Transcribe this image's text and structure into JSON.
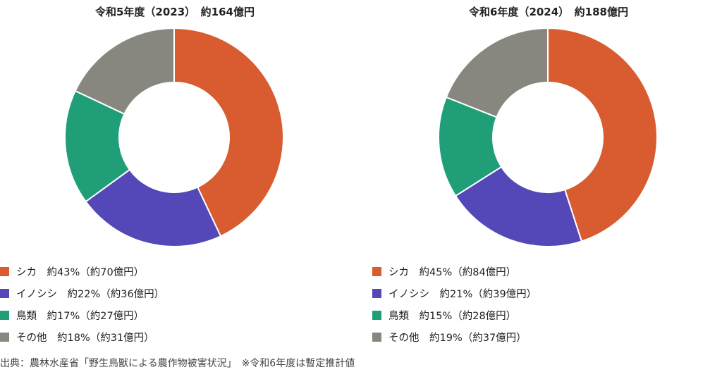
{
  "colors": {
    "deer": "#d95c30",
    "boar": "#5448b8",
    "birds": "#1f9e78",
    "other": "#878780"
  },
  "chart_data": [
    {
      "type": "pie",
      "donut": true,
      "title": "令和5年度（2023）　約164億円",
      "slices": [
        {
          "key": "deer",
          "label": "シカ",
          "percent": 43,
          "legend": "シカ　約43%（約70億円）"
        },
        {
          "key": "boar",
          "label": "イノシシ",
          "percent": 22,
          "legend": "イノシシ　約22%（約36億円）"
        },
        {
          "key": "birds",
          "label": "鳥類",
          "percent": 17,
          "legend": "鳥類　約17%（約27億円）"
        },
        {
          "key": "other",
          "label": "その他",
          "percent": 18,
          "legend": "その他　約18%（約31億円）"
        }
      ]
    },
    {
      "type": "pie",
      "donut": true,
      "title": "令和6年度（2024）　約188億円",
      "slices": [
        {
          "key": "deer",
          "label": "シカ",
          "percent": 45,
          "legend": "シカ　約45%（約84億円）"
        },
        {
          "key": "boar",
          "label": "イノシシ",
          "percent": 21,
          "legend": "イノシシ　約21%（約39億円）"
        },
        {
          "key": "birds",
          "label": "鳥類",
          "percent": 15,
          "legend": "鳥類　約15%（約28億円）"
        },
        {
          "key": "other",
          "label": "その他",
          "percent": 19,
          "legend": "その他　約19%（約37億円）"
        }
      ]
    }
  ],
  "source_note": "出典：農林水産省「野生鳥獣による農作物被害状況」　※令和6年度は暫定推計値"
}
